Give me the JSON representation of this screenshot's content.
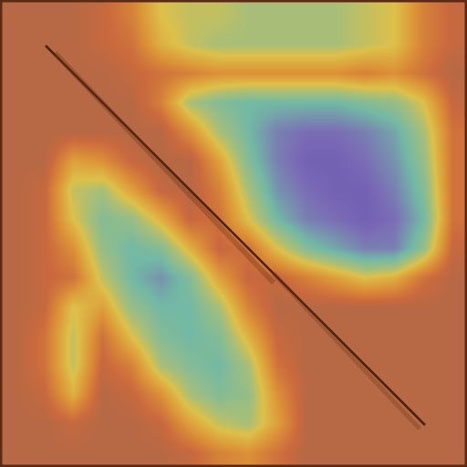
{
  "chart_data": {
    "type": "heatmap",
    "tick_labels": false,
    "zlim": [
      0,
      1
    ],
    "cells": [
      [
        0.95,
        0.95,
        0.95,
        0.9,
        0.8,
        0.6,
        0.55,
        0.55,
        0.5,
        0.5,
        0.5,
        0.5,
        0.55,
        0.6,
        0.8,
        0.9
      ],
      [
        0.95,
        0.95,
        0.95,
        0.9,
        0.85,
        0.65,
        0.55,
        0.5,
        0.5,
        0.5,
        0.5,
        0.5,
        0.55,
        0.6,
        0.8,
        0.9
      ],
      [
        0.95,
        0.95,
        0.95,
        0.95,
        0.9,
        0.85,
        0.8,
        0.75,
        0.75,
        0.75,
        0.75,
        0.75,
        0.8,
        0.75,
        0.85,
        0.95
      ],
      [
        0.95,
        0.95,
        0.95,
        0.95,
        0.95,
        0.8,
        0.5,
        0.4,
        0.35,
        0.35,
        0.35,
        0.35,
        0.4,
        0.45,
        0.6,
        0.9
      ],
      [
        0.95,
        0.95,
        0.95,
        0.95,
        0.95,
        0.95,
        0.75,
        0.5,
        0.35,
        0.2,
        0.15,
        0.15,
        0.2,
        0.3,
        0.5,
        0.85
      ],
      [
        0.95,
        0.95,
        0.7,
        0.75,
        0.9,
        0.95,
        0.95,
        0.7,
        0.4,
        0.2,
        0.1,
        0.1,
        0.15,
        0.25,
        0.45,
        0.85
      ],
      [
        0.95,
        0.9,
        0.55,
        0.5,
        0.7,
        0.9,
        0.95,
        0.8,
        0.5,
        0.25,
        0.15,
        0.1,
        0.1,
        0.2,
        0.4,
        0.85
      ],
      [
        0.95,
        0.9,
        0.6,
        0.4,
        0.45,
        0.65,
        0.9,
        0.85,
        0.6,
        0.35,
        0.2,
        0.15,
        0.1,
        0.15,
        0.35,
        0.85
      ],
      [
        0.95,
        0.9,
        0.75,
        0.45,
        0.35,
        0.4,
        0.65,
        0.9,
        0.85,
        0.6,
        0.4,
        0.3,
        0.2,
        0.2,
        0.45,
        0.9
      ],
      [
        0.95,
        0.9,
        0.85,
        0.55,
        0.35,
        0.25,
        0.4,
        0.7,
        0.9,
        0.9,
        0.8,
        0.7,
        0.6,
        0.65,
        0.85,
        0.95
      ],
      [
        0.95,
        0.9,
        0.6,
        0.7,
        0.45,
        0.35,
        0.35,
        0.5,
        0.8,
        0.95,
        0.95,
        0.95,
        0.95,
        0.95,
        0.95,
        0.95
      ],
      [
        0.95,
        0.85,
        0.55,
        0.85,
        0.6,
        0.4,
        0.35,
        0.4,
        0.65,
        0.9,
        0.95,
        0.95,
        0.95,
        0.95,
        0.95,
        0.95
      ],
      [
        0.95,
        0.85,
        0.55,
        0.9,
        0.8,
        0.5,
        0.4,
        0.35,
        0.5,
        0.85,
        0.95,
        0.95,
        0.95,
        0.95,
        0.95,
        0.95
      ],
      [
        0.95,
        0.9,
        0.65,
        0.95,
        0.9,
        0.75,
        0.5,
        0.4,
        0.45,
        0.75,
        0.95,
        0.95,
        0.95,
        0.95,
        0.95,
        0.95
      ],
      [
        0.95,
        0.95,
        0.9,
        0.95,
        0.95,
        0.9,
        0.7,
        0.55,
        0.5,
        0.7,
        0.95,
        0.95,
        0.95,
        0.95,
        0.95,
        0.95
      ],
      [
        0.95,
        0.95,
        0.95,
        0.95,
        0.95,
        0.95,
        0.9,
        0.8,
        0.75,
        0.85,
        0.95,
        0.95,
        0.95,
        0.95,
        0.95,
        0.95
      ]
    ]
  }
}
